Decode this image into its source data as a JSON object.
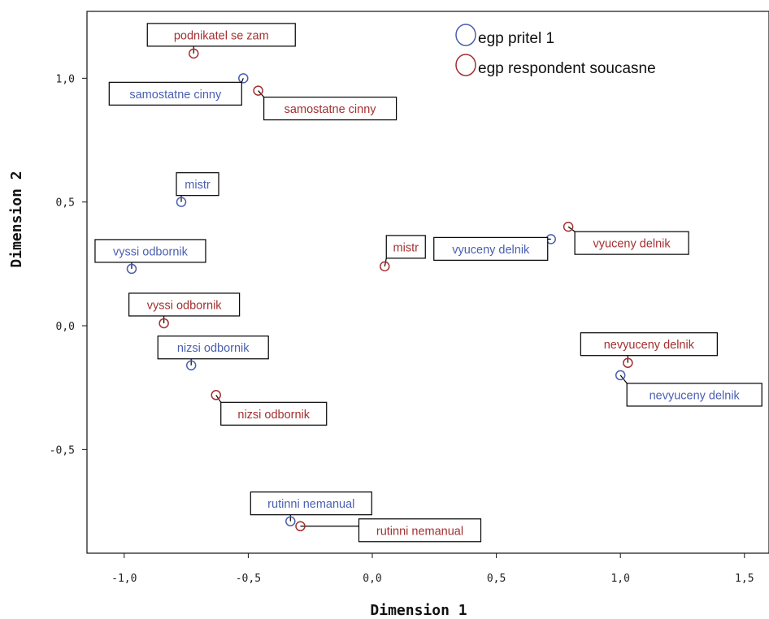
{
  "chart_data": {
    "type": "scatter",
    "xlabel": "Dimension 1",
    "ylabel": "Dimension 2",
    "xlim": [
      -1.15,
      1.6
    ],
    "ylim": [
      -0.93,
      1.23
    ],
    "xticks": [
      {
        "v": -1.0,
        "label": "-1,0"
      },
      {
        "v": -0.5,
        "label": "-0,5"
      },
      {
        "v": 0.0,
        "label": "0,0"
      },
      {
        "v": 0.5,
        "label": "0,5"
      },
      {
        "v": 1.0,
        "label": "1,0"
      },
      {
        "v": 1.5,
        "label": "1,5"
      }
    ],
    "yticks": [
      {
        "v": 1.0,
        "label": "1,0"
      },
      {
        "v": 0.5,
        "label": "0,5"
      },
      {
        "v": 0.0,
        "label": "0,0"
      },
      {
        "v": -0.5,
        "label": "-0,5"
      }
    ],
    "legend_position": "top-right",
    "series": [
      {
        "name": "egp pritel 1",
        "color": "#4a5fb0",
        "points": [
          {
            "x": -0.52,
            "y": 1.0,
            "label": "samostatne cinny"
          },
          {
            "x": -0.77,
            "y": 0.5,
            "label": "mistr"
          },
          {
            "x": -0.97,
            "y": 0.23,
            "label": "vyssi odbornik"
          },
          {
            "x": -0.73,
            "y": -0.16,
            "label": "nizsi odbornik"
          },
          {
            "x": -0.33,
            "y": -0.79,
            "label": "rutinni nemanual"
          },
          {
            "x": 0.72,
            "y": 0.35,
            "label": "vyuceny delnik"
          },
          {
            "x": 1.0,
            "y": -0.2,
            "label": "nevyuceny delnik"
          }
        ]
      },
      {
        "name": "egp respondent soucasne",
        "color": "#a33030",
        "points": [
          {
            "x": -0.72,
            "y": 1.1,
            "label": "podnikatel se zam"
          },
          {
            "x": -0.46,
            "y": 0.95,
            "label": "samostatne cinny"
          },
          {
            "x": -0.84,
            "y": 0.01,
            "label": "vyssi odbornik"
          },
          {
            "x": -0.63,
            "y": -0.28,
            "label": "nizsi odbornik"
          },
          {
            "x": -0.29,
            "y": -0.81,
            "label": "rutinni nemanual"
          },
          {
            "x": 0.05,
            "y": 0.24,
            "label": "mistr"
          },
          {
            "x": 0.79,
            "y": 0.4,
            "label": "vyuceny delnik"
          },
          {
            "x": 1.03,
            "y": -0.15,
            "label": "nevyuceny delnik"
          }
        ]
      }
    ]
  }
}
